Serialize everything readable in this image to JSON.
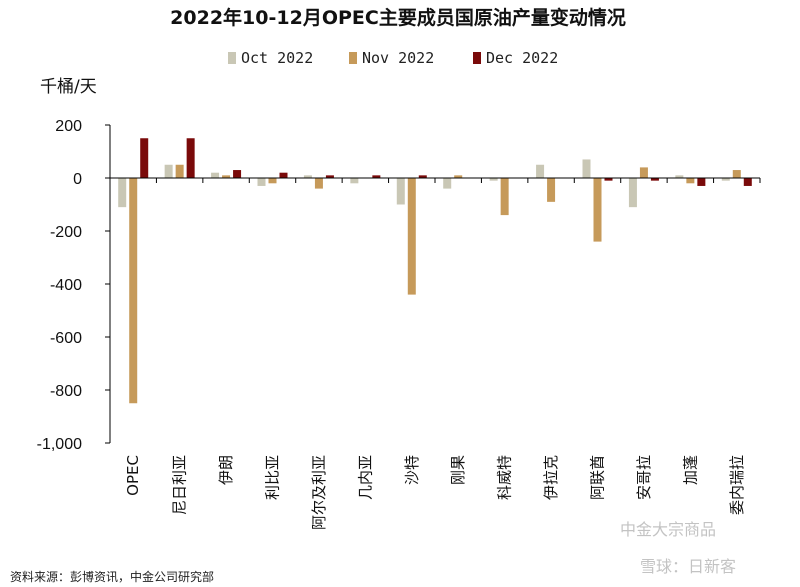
{
  "chart_data": {
    "type": "bar",
    "title": "2022年10-12月OPEC主要成员国原油产量变动情况",
    "ylabel": "千桶/天",
    "ylim": [
      -1000,
      200
    ],
    "yticks": [
      200,
      0,
      -200,
      -400,
      -600,
      -800,
      -1000
    ],
    "ytick_labels": [
      "200",
      "0",
      "-200",
      "-400",
      "-600",
      "-800",
      "-1,000"
    ],
    "categories": [
      "OPEC",
      "尼日利亚",
      "伊朗",
      "利比亚",
      "阿尔及利亚",
      "几内亚",
      "沙特",
      "刚果",
      "科威特",
      "伊拉克",
      "阿联酋",
      "安哥拉",
      "加蓬",
      "委内瑞拉"
    ],
    "series": [
      {
        "name": "Oct 2022",
        "color": "#c9c7b5",
        "values": [
          -110,
          50,
          20,
          -30,
          10,
          -20,
          -100,
          -40,
          -10,
          50,
          70,
          -110,
          10,
          -10
        ]
      },
      {
        "name": "Nov 2022",
        "color": "#c69a5a",
        "values": [
          -850,
          50,
          10,
          -20,
          -40,
          0,
          -440,
          10,
          -140,
          -90,
          -240,
          40,
          -20,
          30
        ]
      },
      {
        "name": "Dec 2022",
        "color": "#7a0a0a",
        "values": [
          150,
          150,
          30,
          20,
          10,
          10,
          10,
          0,
          0,
          0,
          -10,
          -10,
          -30,
          -30
        ]
      }
    ],
    "grid": false,
    "legend": "top"
  },
  "source_note": "资料来源：彭博资讯，中金公司研究部",
  "watermark": {
    "account": "中金大宗商品",
    "platform": "雪球：日新客"
  }
}
